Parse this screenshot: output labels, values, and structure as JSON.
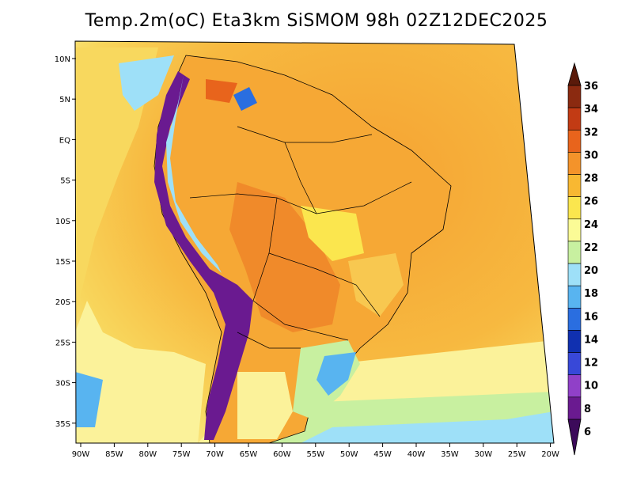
{
  "title": "Temp.2m(oC) Eta3km SiSMOM 98h 02Z12DEC2025",
  "map": {
    "lat_labels": [
      "10N",
      "5N",
      "EQ",
      "5S",
      "10S",
      "15S",
      "20S",
      "25S",
      "30S",
      "35S"
    ],
    "lon_labels": [
      "90W",
      "85W",
      "80W",
      "75W",
      "70W",
      "65W",
      "60W",
      "55W",
      "50W",
      "45W",
      "40W",
      "35W",
      "30W",
      "25W",
      "20W"
    ]
  },
  "colorbar": {
    "levels": [
      "36",
      "34",
      "32",
      "30",
      "28",
      "26",
      "24",
      "22",
      "20",
      "18",
      "16",
      "14",
      "12",
      "10",
      "8",
      "6"
    ],
    "colors": [
      "#5a1a0a",
      "#8b2a10",
      "#c23b14",
      "#e8641c",
      "#f4932a",
      "#f8b832",
      "#fbe64e",
      "#fbfb96",
      "#c8f0a0",
      "#9ee0f8",
      "#58b4f0",
      "#2a6ee0",
      "#1030b0",
      "#3848d8",
      "#9040c8",
      "#6a1a90",
      "#3c0a5a"
    ]
  },
  "colors": {
    "ocean_warm": "#f6a434",
    "ocean_mid": "#f8c84a",
    "ocean_cool": "#fbf29a",
    "land_hot": "#f08a2a",
    "andes": "#6a1a90"
  }
}
